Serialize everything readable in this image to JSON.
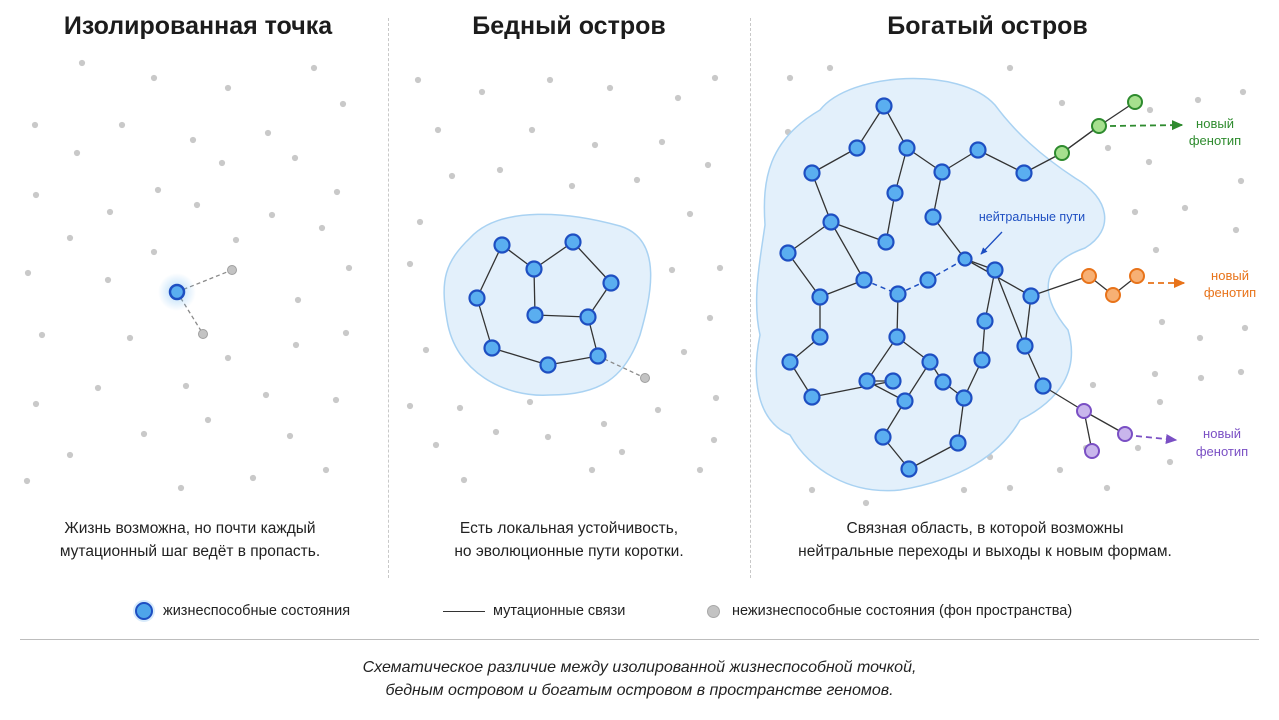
{
  "panels": [
    {
      "title": "Изолированная точка",
      "caption_lines": [
        "Жизнь возможна, но почти каждый",
        "мутационный шаг ведёт в пропасть."
      ]
    },
    {
      "title": "Бедный остров",
      "caption_lines": [
        "Есть локальная устойчивость,",
        "но эволюционные пути коротки."
      ]
    },
    {
      "title": "Богатый остров",
      "caption_lines": [
        "Связная область, в которой возможны",
        "нейтральные переходы и выходы к новым формам."
      ]
    }
  ],
  "annotations": {
    "neutral_paths": "нейтральные пути",
    "phenotypes": [
      {
        "line1": "новый",
        "line2": "фенотип",
        "color": "#2e8b2e"
      },
      {
        "line1": "новый",
        "line2": "фенотип",
        "color": "#e8731a"
      },
      {
        "line1": "новый",
        "line2": "фенотип",
        "color": "#7a4fc4"
      }
    ]
  },
  "legend": {
    "viable": "жизнеспособные состояния",
    "links": "мутационные связи",
    "nonviable": "нежизнеспособные состояния (фон пространства)"
  },
  "footer_lines": [
    "Схематическое различие между изолированной жизнеспособной точкой,",
    "бедным островом и богатым островом в пространстве геномов."
  ],
  "colors": {
    "node_fill": "#5aaef0",
    "node_stroke": "#1e4fc2",
    "island_fill": "#e3f0fb",
    "island_stroke": "#a9d2f2",
    "grey_dot": "#c9c9c9",
    "green": "#2e8b2e",
    "green_fill": "#a6e08e",
    "orange": "#e8731a",
    "orange_fill": "#f7b074",
    "purple": "#7a4fc4",
    "purple_fill": "#c9b6ec"
  }
}
